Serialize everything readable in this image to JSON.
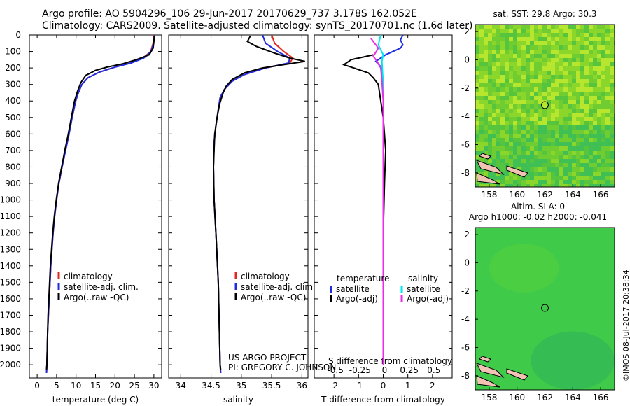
{
  "header": {
    "title": "Argo profile: AO 5904296_106 29-Jun-2017 20170629_737 3.178S 162.052E",
    "subtitle": "Climatology: CARS2009. Satellite-adjusted climatology: synTS_20170701.nc (1.6d later)"
  },
  "credit": {
    "line1": "US ARGO PROJECT",
    "line2": "PI: GREGORY C. JOHNSON"
  },
  "stamp": "©IMOS 08-Jul-2017 20:38:34",
  "colors": {
    "climatology": "#e0261e",
    "satellite": "#1f2de0",
    "argo": "#000000",
    "sat_diff": "#00e6ee",
    "argo_sal_diff": "#e82ee8"
  },
  "chart_data": [
    {
      "type": "line",
      "id": "temperature",
      "xlabel": "temperature (deg C)",
      "ylabel": "",
      "xlim": [
        -2,
        32
      ],
      "ylim": [
        2080,
        0
      ],
      "xticks": [
        0,
        5,
        10,
        15,
        20,
        25,
        30
      ],
      "yticks": [
        0,
        100,
        200,
        300,
        400,
        500,
        600,
        700,
        800,
        900,
        1000,
        1100,
        1200,
        1300,
        1400,
        1500,
        1600,
        1700,
        1800,
        1900,
        2000
      ],
      "legend": [
        "climatology",
        "satellite-adj. clim.",
        "Argo(..raw -QC)"
      ],
      "series": [
        {
          "name": "climatology",
          "points": [
            [
              30.0,
              0
            ],
            [
              29.8,
              50
            ],
            [
              29.2,
              100
            ],
            [
              27.2,
              140
            ],
            [
              24,
              170
            ],
            [
              20,
              195
            ],
            [
              16,
              225
            ],
            [
              13,
              260
            ],
            [
              11.5,
              300
            ],
            [
              10.6,
              350
            ],
            [
              9.9,
              400
            ],
            [
              9.0,
              500
            ],
            [
              8.2,
              600
            ],
            [
              7.3,
              700
            ],
            [
              6.4,
              800
            ],
            [
              5.6,
              900
            ],
            [
              5.0,
              1000
            ],
            [
              4.5,
              1100
            ],
            [
              4.1,
              1200
            ],
            [
              3.8,
              1300
            ],
            [
              3.5,
              1400
            ],
            [
              3.3,
              1500
            ],
            [
              3.1,
              1600
            ],
            [
              2.9,
              1700
            ],
            [
              2.7,
              1800
            ],
            [
              2.6,
              1900
            ],
            [
              2.5,
              2000
            ],
            [
              2.4,
              2050
            ]
          ]
        },
        {
          "name": "satellite-adj. clim.",
          "points": [
            [
              30.2,
              0
            ],
            [
              29.9,
              50
            ],
            [
              29.3,
              100
            ],
            [
              27.4,
              140
            ],
            [
              24.2,
              170
            ],
            [
              20,
              195
            ],
            [
              16,
              225
            ],
            [
              13,
              260
            ],
            [
              11.5,
              300
            ],
            [
              10.6,
              350
            ],
            [
              9.9,
              400
            ],
            [
              9.0,
              500
            ],
            [
              8.2,
              600
            ],
            [
              7.3,
              700
            ],
            [
              6.4,
              800
            ],
            [
              5.6,
              900
            ],
            [
              5.0,
              1000
            ],
            [
              4.5,
              1100
            ],
            [
              4.1,
              1200
            ],
            [
              3.8,
              1300
            ],
            [
              3.5,
              1400
            ],
            [
              3.3,
              1500
            ],
            [
              3.1,
              1600
            ],
            [
              2.9,
              1700
            ],
            [
              2.7,
              1800
            ],
            [
              2.6,
              1900
            ],
            [
              2.5,
              2000
            ],
            [
              2.4,
              2050
            ]
          ]
        },
        {
          "name": "Argo(..raw -QC)",
          "points": [
            [
              30.1,
              5
            ],
            [
              30.0,
              40
            ],
            [
              29.8,
              80
            ],
            [
              28.8,
              120
            ],
            [
              25.5,
              150
            ],
            [
              22,
              175
            ],
            [
              18,
              195
            ],
            [
              15,
              215
            ],
            [
              12.5,
              245
            ],
            [
              11.2,
              290
            ],
            [
              10.4,
              340
            ],
            [
              9.6,
              400
            ],
            [
              8.8,
              500
            ],
            [
              8.0,
              600
            ],
            [
              7.1,
              700
            ],
            [
              6.3,
              800
            ],
            [
              5.5,
              900
            ],
            [
              4.9,
              1000
            ],
            [
              4.4,
              1100
            ],
            [
              4.0,
              1200
            ],
            [
              3.7,
              1300
            ],
            [
              3.4,
              1400
            ],
            [
              3.2,
              1500
            ],
            [
              3.0,
              1600
            ],
            [
              2.8,
              1700
            ],
            [
              2.7,
              1800
            ],
            [
              2.6,
              1900
            ],
            [
              2.5,
              2000
            ],
            [
              2.4,
              2030
            ]
          ]
        }
      ]
    },
    {
      "type": "line",
      "id": "salinity",
      "xlabel": "salinity",
      "xlim": [
        33.8,
        36.1
      ],
      "ylim": [
        2080,
        0
      ],
      "xticks": [
        34,
        34.5,
        35,
        35.5,
        36
      ],
      "legend": [
        "climatology",
        "satellite-adj. clim.",
        "Argo(..raw -QC)"
      ],
      "series": [
        {
          "name": "climatology",
          "points": [
            [
              35.5,
              0
            ],
            [
              35.55,
              50
            ],
            [
              35.7,
              100
            ],
            [
              35.85,
              140
            ],
            [
              35.8,
              170
            ],
            [
              35.4,
              200
            ],
            [
              35.05,
              240
            ],
            [
              34.85,
              280
            ],
            [
              34.72,
              330
            ],
            [
              34.65,
              380
            ],
            [
              34.62,
              450
            ],
            [
              34.58,
              550
            ],
            [
              34.55,
              650
            ],
            [
              34.54,
              800
            ],
            [
              34.55,
              1000
            ],
            [
              34.58,
              1200
            ],
            [
              34.62,
              1500
            ],
            [
              34.65,
              2000
            ],
            [
              34.66,
              2050
            ]
          ]
        },
        {
          "name": "satellite-adj. clim.",
          "points": [
            [
              35.35,
              0
            ],
            [
              35.4,
              50
            ],
            [
              35.6,
              100
            ],
            [
              35.8,
              140
            ],
            [
              35.78,
              170
            ],
            [
              35.4,
              200
            ],
            [
              35.05,
              240
            ],
            [
              34.85,
              280
            ],
            [
              34.72,
              330
            ],
            [
              34.65,
              380
            ],
            [
              34.62,
              450
            ],
            [
              34.58,
              550
            ],
            [
              34.55,
              650
            ],
            [
              34.54,
              800
            ],
            [
              34.55,
              1000
            ],
            [
              34.58,
              1200
            ],
            [
              34.62,
              1500
            ],
            [
              34.65,
              2000
            ],
            [
              34.66,
              2050
            ]
          ]
        },
        {
          "name": "Argo(..raw -QC)",
          "points": [
            [
              35.15,
              5
            ],
            [
              35.1,
              40
            ],
            [
              35.25,
              70
            ],
            [
              35.55,
              110
            ],
            [
              35.8,
              140
            ],
            [
              36.05,
              160
            ],
            [
              35.7,
              180
            ],
            [
              35.35,
              200
            ],
            [
              35.05,
              230
            ],
            [
              34.85,
              270
            ],
            [
              34.75,
              310
            ],
            [
              34.7,
              350
            ],
            [
              34.64,
              420
            ],
            [
              34.6,
              500
            ],
            [
              34.56,
              600
            ],
            [
              34.55,
              700
            ],
            [
              34.54,
              800
            ],
            [
              34.55,
              1000
            ],
            [
              34.58,
              1200
            ],
            [
              34.62,
              1500
            ],
            [
              34.65,
              2000
            ],
            [
              34.66,
              2030
            ]
          ]
        }
      ]
    },
    {
      "type": "line",
      "id": "differences",
      "xlabel": "T difference from climatology",
      "title": "S difference from climatology",
      "xlim": [
        -2.8,
        2.8
      ],
      "ylim": [
        2080,
        0
      ],
      "xticks": [
        -2,
        -1,
        0,
        1,
        2
      ],
      "s_ticks": [
        "-0.5",
        "-0.25",
        "0",
        "0.25",
        "0.5"
      ],
      "legend_temperature": {
        "header": "temperature",
        "items": [
          "satellite",
          "Argo(-adj)"
        ]
      },
      "legend_salinity": {
        "header": "salinity",
        "items": [
          "satellite",
          "Argo(-adj)"
        ]
      },
      "series": [
        {
          "name": "T satellite",
          "points": [
            [
              0.8,
              0
            ],
            [
              0.7,
              30
            ],
            [
              0.8,
              60
            ],
            [
              0.7,
              80
            ],
            [
              0.1,
              120
            ],
            [
              -0.3,
              160
            ],
            [
              -0.05,
              200
            ],
            [
              0,
              300
            ],
            [
              0,
              500
            ],
            [
              0,
              1000
            ],
            [
              0,
              2000
            ]
          ]
        },
        {
          "name": "T Argo(-adj)",
          "points": [
            [
              -0.4,
              120
            ],
            [
              -1.3,
              150
            ],
            [
              -1.6,
              180
            ],
            [
              -1.2,
              200
            ],
            [
              -0.6,
              230
            ],
            [
              -0.4,
              260
            ],
            [
              -0.2,
              300
            ],
            [
              -0.1,
              400
            ],
            [
              0,
              500
            ],
            [
              0.1,
              700
            ],
            [
              0.05,
              900
            ],
            [
              0,
              1200
            ],
            [
              0,
              2000
            ]
          ]
        },
        {
          "name": "S satellite",
          "points": [
            [
              -0.1,
              0
            ],
            [
              -0.15,
              30
            ],
            [
              -0.2,
              60
            ],
            [
              0,
              120
            ],
            [
              -0.05,
              160
            ],
            [
              0,
              300
            ],
            [
              0,
              1000
            ],
            [
              0,
              2000
            ]
          ]
        },
        {
          "name": "S Argo(-adj)",
          "points": [
            [
              -0.5,
              20
            ],
            [
              -0.4,
              40
            ],
            [
              -0.2,
              80
            ],
            [
              -0.4,
              130
            ],
            [
              -0.25,
              160
            ],
            [
              -0.1,
              200
            ],
            [
              -0.05,
              280
            ],
            [
              0,
              400
            ],
            [
              0,
              2000
            ]
          ]
        }
      ]
    },
    {
      "type": "heatmap",
      "id": "sst-map",
      "title": "sat. SST: 29.8 Argo: 30.3",
      "xlim": [
        157,
        167
      ],
      "ylim": [
        -9,
        2.5
      ],
      "xticks": [
        158,
        160,
        162,
        164,
        166
      ],
      "yticks": [
        2,
        0,
        -2,
        -4,
        -6,
        -8
      ],
      "marker": [
        162,
        -3.2
      ]
    },
    {
      "type": "heatmap",
      "id": "sla-map",
      "title": "Altim. SLA: 0",
      "subtitle": "Argo h1000: -0.02 h2000: -0.041",
      "xlim": [
        157,
        167
      ],
      "ylim": [
        -9,
        2.5
      ],
      "xticks": [
        158,
        160,
        162,
        164,
        166
      ],
      "yticks": [
        2,
        0,
        -2,
        -4,
        -6,
        -8
      ],
      "marker": [
        162,
        -3.2
      ]
    }
  ]
}
